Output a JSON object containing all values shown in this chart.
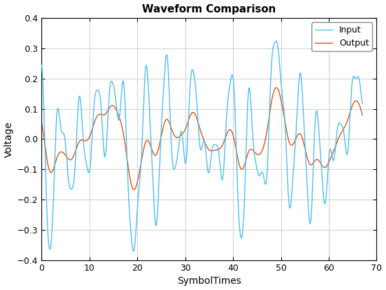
{
  "title": "Waveform Comparison",
  "xlabel": "SymbolTimes",
  "ylabel": "Voltage",
  "xlim": [
    0,
    70
  ],
  "ylim": [
    -0.4,
    0.4
  ],
  "input_color": "#4DBEEE",
  "output_color": "#D95319",
  "input_label": "Input",
  "output_label": "Output",
  "input_linewidth": 1.0,
  "output_linewidth": 1.0,
  "grid_color": "#D3D3D3",
  "background_color": "#FFFFFF",
  "title_fontsize": 11,
  "label_fontsize": 10,
  "legend_fontsize": 9,
  "xticks": [
    0,
    10,
    20,
    30,
    40,
    50,
    60,
    70
  ],
  "yticks": [
    -0.4,
    -0.3,
    -0.2,
    -0.1,
    0,
    0.1,
    0.2,
    0.3,
    0.4
  ]
}
